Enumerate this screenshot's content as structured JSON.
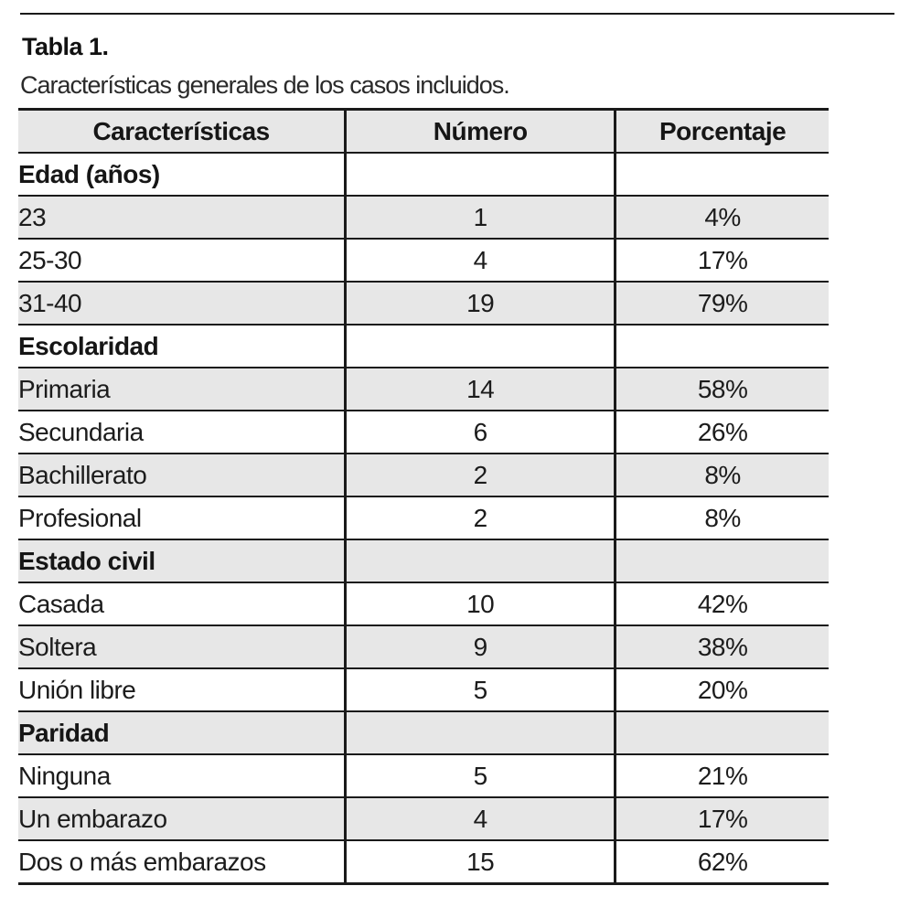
{
  "page": {
    "title": "Tabla 1.",
    "subtitle": "Características generales de los casos incluidos."
  },
  "table": {
    "columns": [
      "Características",
      "Número",
      "Porcentaje"
    ],
    "sections": [
      {
        "header": "Edad (años)",
        "rows": [
          [
            "23",
            "1",
            "4%"
          ],
          [
            "25-30",
            "4",
            "17%"
          ],
          [
            "31-40",
            "19",
            "79%"
          ]
        ]
      },
      {
        "header": "Escolaridad",
        "rows": [
          [
            "Primaria",
            "14",
            "58%"
          ],
          [
            "Secundaria",
            "6",
            "26%"
          ],
          [
            "Bachillerato",
            "2",
            "8%"
          ],
          [
            "Profesional",
            "2",
            "8%"
          ]
        ]
      },
      {
        "header": "Estado civil",
        "rows": [
          [
            "Casada",
            "10",
            "42%"
          ],
          [
            "Soltera",
            "9",
            "38%"
          ],
          [
            "Unión libre",
            "5",
            "20%"
          ]
        ]
      },
      {
        "header": "Paridad",
        "rows": [
          [
            "Ninguna",
            "5",
            "21%"
          ],
          [
            "Un embarazo",
            "4",
            "17%"
          ],
          [
            "Dos o más embarazos",
            "15",
            "62%"
          ]
        ]
      }
    ],
    "colors": {
      "row_shade": "#e7e7e7",
      "border": "#1a1a1a"
    }
  }
}
